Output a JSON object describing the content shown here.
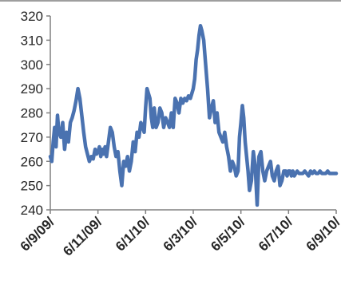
{
  "chart_data": {
    "type": "line",
    "title": "",
    "xlabel": "",
    "ylabel": "",
    "ylim": [
      240,
      320
    ],
    "yticks": [
      240,
      250,
      260,
      270,
      280,
      290,
      300,
      310,
      320
    ],
    "xticks": [
      "6/9/09/",
      "6/11/09/",
      "6/1/10/",
      "6/3/10/",
      "6/5/10/",
      "6/7/10/",
      "6/9/10/"
    ],
    "grid": false,
    "legend": "none",
    "colors": {
      "series": "#4a72b0",
      "axis": "#808080",
      "text": "#262626"
    },
    "series": [
      {
        "x": [
          0,
          0.03,
          0.06,
          0.09,
          0.12,
          0.15,
          0.18,
          0.22,
          0.26,
          0.3,
          0.34,
          0.38,
          0.42,
          0.46,
          0.5,
          0.54,
          0.58,
          0.62,
          0.66,
          0.7,
          0.74,
          0.78,
          0.82,
          0.86,
          0.9,
          0.94,
          0.97,
          1.0,
          1.03,
          1.06,
          1.09,
          1.12,
          1.15,
          1.18,
          1.22,
          1.26,
          1.3,
          1.34,
          1.38,
          1.42,
          1.46,
          1.5,
          1.54,
          1.58,
          1.62,
          1.66,
          1.7,
          1.74,
          1.78,
          1.82,
          1.86,
          1.9,
          1.94,
          1.97,
          2.0,
          2.03,
          2.06,
          2.09,
          2.12,
          2.15,
          2.18,
          2.22,
          2.26,
          2.3,
          2.34,
          2.38,
          2.42,
          2.46,
          2.5,
          2.54,
          2.58,
          2.62,
          2.66,
          2.7,
          2.74,
          2.78,
          2.82,
          2.86,
          2.9,
          2.94,
          2.97,
          3.0,
          3.03,
          3.06,
          3.09,
          3.12,
          3.15,
          3.18,
          3.22,
          3.26,
          3.3,
          3.34,
          3.38,
          3.42,
          3.46,
          3.5,
          3.54,
          3.58,
          3.62,
          3.66,
          3.7,
          3.74,
          3.78,
          3.82,
          3.86,
          3.9,
          3.94,
          3.97,
          4.0,
          4.03,
          4.06,
          4.09,
          4.12,
          4.15,
          4.18,
          4.22,
          4.26,
          4.3,
          4.34,
          4.38,
          4.42,
          4.46,
          4.5,
          4.54,
          4.58,
          4.62,
          4.66,
          4.7,
          4.74,
          4.78,
          4.82,
          4.86,
          4.9,
          4.94,
          4.97,
          5.0,
          5.03,
          5.06,
          5.09,
          5.12,
          5.15,
          5.18,
          5.22,
          5.26,
          5.3,
          5.34,
          5.38,
          5.42,
          5.46,
          5.5,
          5.54,
          5.58,
          5.62,
          5.66,
          5.7,
          5.74,
          5.78,
          5.82,
          5.86,
          5.9,
          5.94,
          5.97,
          6.0
        ],
        "values": [
          262,
          260,
          268,
          274,
          266,
          279,
          272,
          270,
          276,
          265,
          272,
          268,
          276,
          278,
          281,
          285,
          290,
          286,
          279,
          272,
          266,
          263,
          260,
          262,
          261,
          265,
          263,
          264,
          266,
          262,
          265,
          263,
          266,
          262,
          268,
          274,
          272,
          266,
          262,
          264,
          256,
          250,
          260,
          258,
          262,
          256,
          260,
          268,
          264,
          272,
          270,
          276,
          274,
          272,
          282,
          290,
          288,
          286,
          278,
          274,
          282,
          274,
          276,
          282,
          280,
          274,
          278,
          276,
          274,
          280,
          274,
          286,
          284,
          280,
          286,
          284,
          286,
          285,
          287,
          286,
          288,
          290,
          294,
          302,
          306,
          312,
          316,
          314,
          310,
          300,
          290,
          278,
          282,
          285,
          276,
          280,
          272,
          270,
          268,
          272,
          266,
          262,
          256,
          260,
          258,
          254,
          256,
          270,
          276,
          283,
          278,
          268,
          262,
          256,
          248,
          252,
          264,
          258,
          242,
          262,
          264,
          256,
          252,
          256,
          258,
          260,
          254,
          252,
          256,
          258,
          250,
          252,
          256,
          256,
          254,
          256,
          256,
          254,
          256,
          254,
          255,
          256,
          255,
          255,
          255,
          256,
          255,
          254,
          256,
          255,
          256,
          255,
          255,
          256,
          255,
          255,
          255,
          256,
          255,
          255,
          255,
          255,
          255
        ]
      }
    ]
  }
}
